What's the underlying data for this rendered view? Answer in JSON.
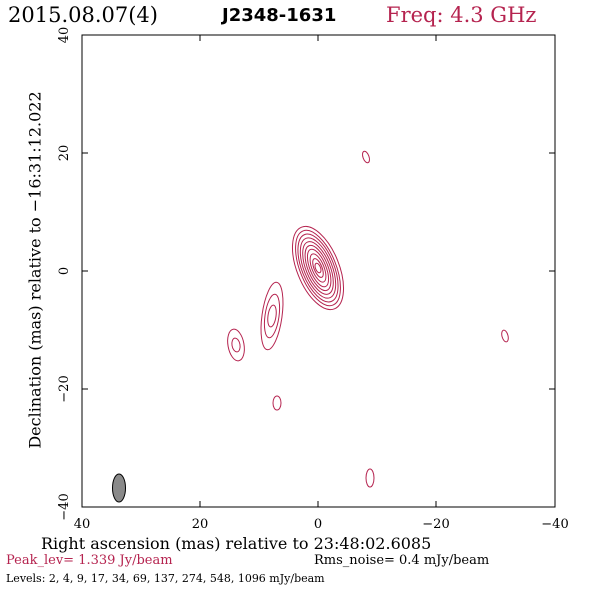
{
  "header": {
    "date": "2015.08.07(4)",
    "source": "J2348-1631",
    "frequency": "Freq: 4.3 GHz"
  },
  "axes": {
    "xlabel": "Right ascension (mas) relative to 23:48:02.6085",
    "ylabel": "Declination (mas) relative to −16:31:12.022",
    "xlim": [
      40,
      -40
    ],
    "ylim": [
      -40,
      40
    ],
    "xticks": [
      "40",
      "20",
      "0",
      "−20",
      "−40"
    ],
    "yticks": [
      "−40",
      "−20",
      "0",
      "20",
      "40"
    ]
  },
  "footer": {
    "peak": "Peak_lev=  1.339 Jy/beam",
    "rms": "Rms_noise=  0.4 mJy/beam",
    "levels": "Levels:   2,   4,   9,   17,   34,   69,  137,  274,  548,  1096 mJy/beam"
  },
  "colors": {
    "contour": "#b5234f",
    "beam_fill": "#8a8a8a",
    "header_freq": "#b5234f"
  }
}
